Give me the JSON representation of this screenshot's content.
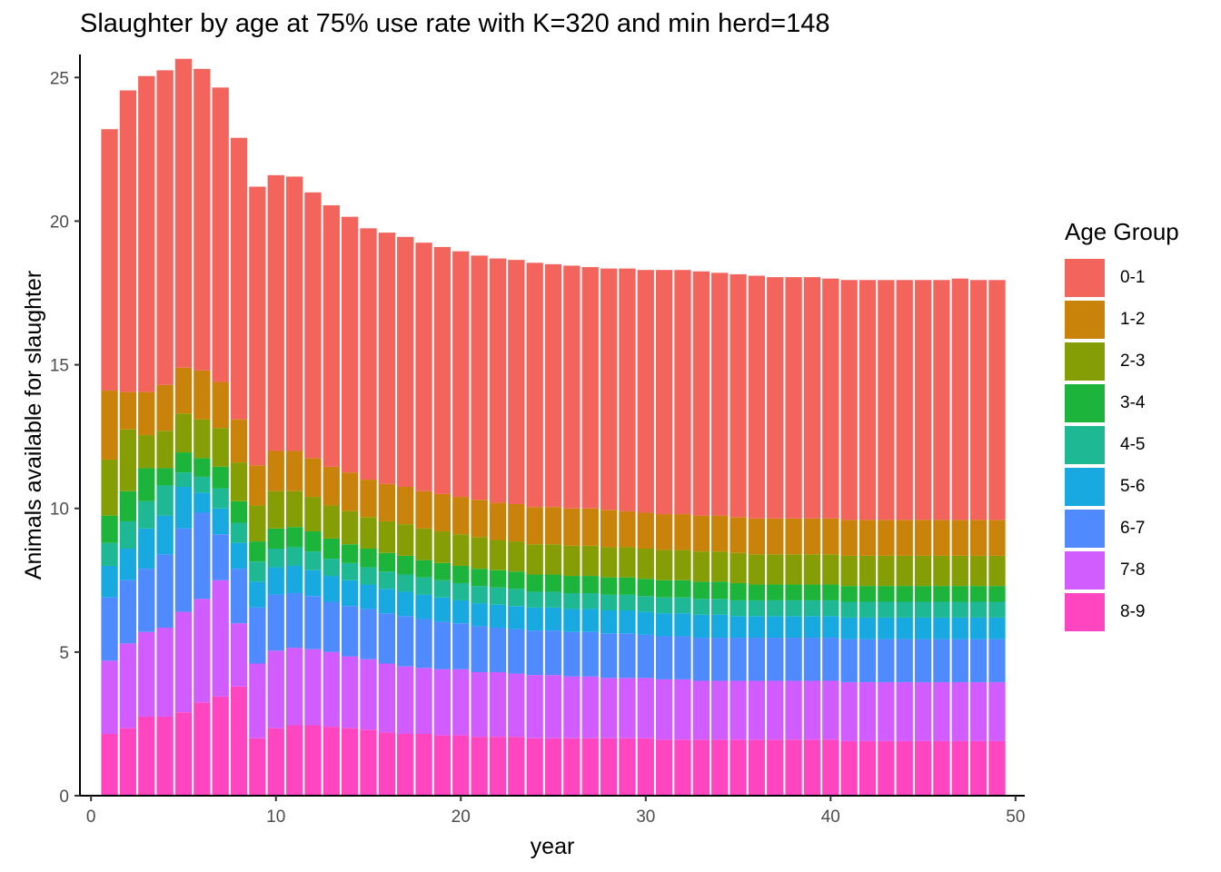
{
  "chart_data": {
    "type": "bar",
    "stacked": true,
    "title": "Slaughter by age at 75% use rate with K=320 and min herd=148",
    "xlabel": "year",
    "ylabel": "Animals available for slaughter",
    "xlim": [
      -0.6,
      50.5
    ],
    "ylim": [
      0,
      25.8
    ],
    "xticks": [
      0,
      10,
      20,
      30,
      40,
      50
    ],
    "yticks": [
      0,
      5,
      10,
      15,
      20,
      25
    ],
    "legend_title": "Age Group",
    "legend_position": "right",
    "x": [
      1,
      2,
      3,
      4,
      5,
      6,
      7,
      8,
      9,
      10,
      11,
      12,
      13,
      14,
      15,
      16,
      17,
      18,
      19,
      20,
      21,
      22,
      23,
      24,
      25,
      26,
      27,
      28,
      29,
      30,
      31,
      32,
      33,
      34,
      35,
      36,
      37,
      38,
      39,
      40,
      41,
      42,
      43,
      44,
      45,
      46,
      47,
      48,
      49
    ],
    "series": [
      {
        "name": "8-9",
        "color": "#FF45C0",
        "values": [
          2.15,
          2.35,
          2.75,
          2.75,
          2.9,
          3.25,
          3.45,
          3.8,
          2.0,
          2.35,
          2.45,
          2.45,
          2.4,
          2.35,
          2.3,
          2.2,
          2.15,
          2.15,
          2.1,
          2.1,
          2.05,
          2.05,
          2.05,
          2.0,
          2.0,
          2.0,
          2.0,
          2.0,
          2.0,
          2.0,
          1.95,
          1.95,
          1.95,
          1.95,
          1.95,
          1.95,
          1.95,
          1.95,
          1.95,
          1.95,
          1.9,
          1.9,
          1.9,
          1.9,
          1.9,
          1.9,
          1.9,
          1.9,
          1.9
        ]
      },
      {
        "name": "7-8",
        "color": "#D15CFF",
        "values": [
          2.55,
          2.95,
          2.95,
          3.1,
          3.5,
          3.6,
          4.05,
          2.2,
          2.6,
          2.7,
          2.7,
          2.65,
          2.6,
          2.5,
          2.45,
          2.4,
          2.35,
          2.3,
          2.3,
          2.3,
          2.25,
          2.25,
          2.2,
          2.2,
          2.2,
          2.15,
          2.15,
          2.1,
          2.1,
          2.1,
          2.1,
          2.1,
          2.05,
          2.05,
          2.05,
          2.05,
          2.05,
          2.05,
          2.05,
          2.05,
          2.05,
          2.05,
          2.05,
          2.05,
          2.05,
          2.05,
          2.05,
          2.05,
          2.05
        ]
      },
      {
        "name": "6-7",
        "color": "#4F8BFF",
        "values": [
          2.2,
          2.2,
          2.2,
          2.55,
          2.9,
          3.0,
          1.6,
          1.9,
          1.95,
          1.95,
          1.9,
          1.85,
          1.75,
          1.75,
          1.75,
          1.75,
          1.75,
          1.7,
          1.65,
          1.6,
          1.6,
          1.55,
          1.55,
          1.55,
          1.55,
          1.55,
          1.55,
          1.55,
          1.55,
          1.5,
          1.5,
          1.5,
          1.5,
          1.5,
          1.5,
          1.5,
          1.5,
          1.5,
          1.5,
          1.5,
          1.5,
          1.5,
          1.5,
          1.5,
          1.5,
          1.5,
          1.5,
          1.5,
          1.5
        ]
      },
      {
        "name": "5-6",
        "color": "#18A9E0",
        "values": [
          1.1,
          1.1,
          1.4,
          1.35,
          1.45,
          0.7,
          0.9,
          0.9,
          0.9,
          0.95,
          0.95,
          0.9,
          0.9,
          0.9,
          0.85,
          0.85,
          0.85,
          0.85,
          0.85,
          0.8,
          0.8,
          0.8,
          0.8,
          0.8,
          0.8,
          0.8,
          0.8,
          0.8,
          0.8,
          0.8,
          0.8,
          0.8,
          0.8,
          0.8,
          0.75,
          0.75,
          0.75,
          0.75,
          0.75,
          0.75,
          0.75,
          0.75,
          0.75,
          0.75,
          0.75,
          0.75,
          0.75,
          0.75,
          0.75
        ]
      },
      {
        "name": "4-5",
        "color": "#1EB894",
        "values": [
          0.8,
          0.95,
          0.95,
          1.05,
          0.5,
          0.55,
          0.7,
          0.7,
          0.7,
          0.65,
          0.65,
          0.65,
          0.6,
          0.6,
          0.6,
          0.6,
          0.6,
          0.6,
          0.6,
          0.6,
          0.6,
          0.6,
          0.6,
          0.55,
          0.55,
          0.55,
          0.55,
          0.55,
          0.55,
          0.55,
          0.55,
          0.55,
          0.55,
          0.55,
          0.55,
          0.55,
          0.55,
          0.55,
          0.55,
          0.55,
          0.55,
          0.55,
          0.55,
          0.55,
          0.55,
          0.55,
          0.55,
          0.55,
          0.55
        ]
      },
      {
        "name": "3-4",
        "color": "#1CB43A",
        "values": [
          0.95,
          1.05,
          1.15,
          0.6,
          0.7,
          0.65,
          0.75,
          0.75,
          0.7,
          0.7,
          0.7,
          0.7,
          0.7,
          0.65,
          0.65,
          0.65,
          0.65,
          0.6,
          0.6,
          0.6,
          0.6,
          0.6,
          0.6,
          0.6,
          0.6,
          0.6,
          0.6,
          0.6,
          0.6,
          0.6,
          0.6,
          0.6,
          0.6,
          0.6,
          0.6,
          0.55,
          0.55,
          0.55,
          0.55,
          0.55,
          0.55,
          0.55,
          0.55,
          0.55,
          0.55,
          0.55,
          0.55,
          0.55,
          0.55
        ]
      },
      {
        "name": "2-3",
        "color": "#869E06",
        "values": [
          1.95,
          2.15,
          1.15,
          1.3,
          1.35,
          1.35,
          1.35,
          1.35,
          1.25,
          1.3,
          1.25,
          1.2,
          1.15,
          1.15,
          1.1,
          1.1,
          1.1,
          1.1,
          1.1,
          1.1,
          1.1,
          1.05,
          1.05,
          1.05,
          1.05,
          1.05,
          1.05,
          1.05,
          1.05,
          1.05,
          1.05,
          1.05,
          1.05,
          1.05,
          1.05,
          1.05,
          1.05,
          1.05,
          1.05,
          1.05,
          1.05,
          1.05,
          1.05,
          1.05,
          1.05,
          1.05,
          1.05,
          1.05,
          1.05
        ]
      },
      {
        "name": "1-2",
        "color": "#C9830A",
        "values": [
          2.4,
          1.3,
          1.5,
          1.6,
          1.6,
          1.7,
          1.6,
          1.5,
          1.4,
          1.4,
          1.4,
          1.35,
          1.35,
          1.35,
          1.3,
          1.3,
          1.3,
          1.3,
          1.3,
          1.3,
          1.3,
          1.3,
          1.3,
          1.3,
          1.3,
          1.3,
          1.3,
          1.3,
          1.25,
          1.25,
          1.25,
          1.25,
          1.25,
          1.25,
          1.25,
          1.25,
          1.25,
          1.25,
          1.25,
          1.25,
          1.25,
          1.25,
          1.25,
          1.25,
          1.25,
          1.25,
          1.25,
          1.25,
          1.25
        ]
      },
      {
        "name": "0-1",
        "color": "#F3645C",
        "values": [
          9.1,
          10.5,
          11.0,
          10.95,
          10.75,
          10.5,
          10.25,
          9.8,
          9.7,
          9.6,
          9.55,
          9.25,
          9.1,
          8.9,
          8.75,
          8.75,
          8.7,
          8.65,
          8.6,
          8.55,
          8.5,
          8.5,
          8.5,
          8.5,
          8.45,
          8.45,
          8.4,
          8.4,
          8.45,
          8.45,
          8.5,
          8.5,
          8.5,
          8.45,
          8.45,
          8.45,
          8.4,
          8.4,
          8.4,
          8.35,
          8.35,
          8.35,
          8.35,
          8.35,
          8.35,
          8.35,
          8.4,
          8.35,
          8.35
        ]
      }
    ]
  }
}
